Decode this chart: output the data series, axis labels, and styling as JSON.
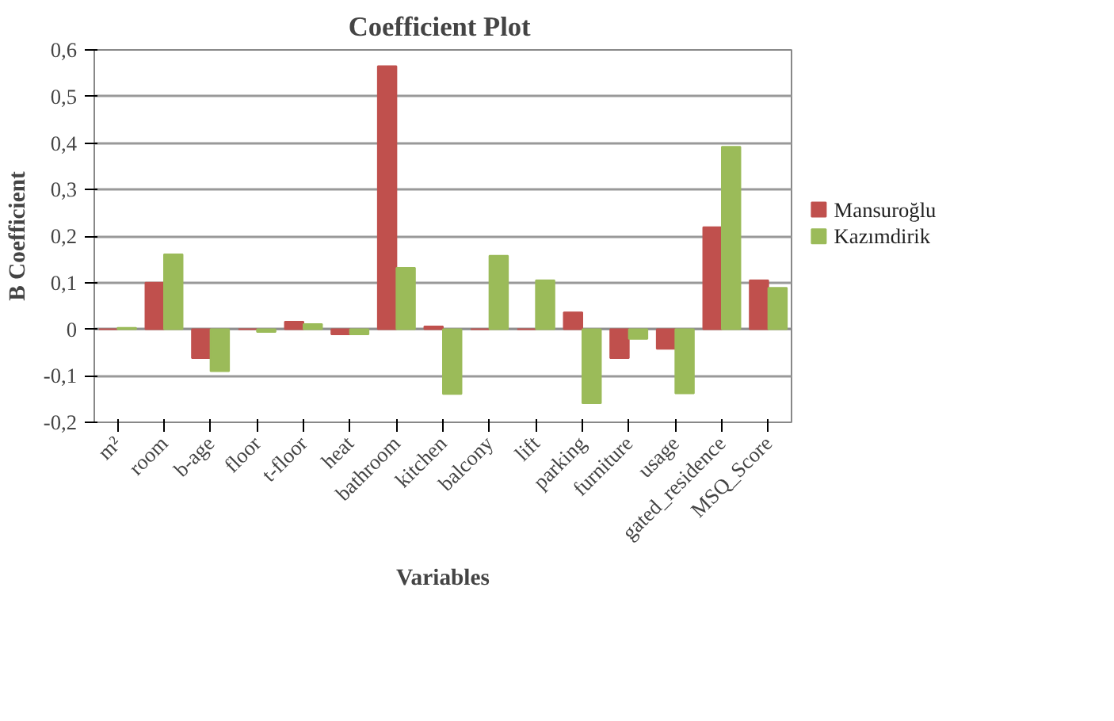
{
  "chart_data": {
    "type": "bar",
    "title": "Coefficient  Plot",
    "xlabel": "Variables",
    "ylabel": "B Coefficient",
    "categories": [
      "m²",
      "room",
      "b-age",
      "floor",
      "t-floor",
      "heat",
      "bathroom",
      "kitchen",
      "balcony",
      "lift",
      "parking",
      "furniture",
      "usage",
      "gated_residence",
      "MSQ_Score"
    ],
    "series": [
      {
        "name": "Mansuroğlu",
        "color": "#c0504d",
        "values": [
          0,
          0.1,
          -0.062,
          0,
          0.016,
          -0.011,
          0.565,
          0.006,
          0,
          0,
          0.036,
          -0.062,
          -0.042,
          0.219,
          0.105
        ]
      },
      {
        "name": "Kazımdirik",
        "color": "#9bbb59",
        "values": [
          0.003,
          0.161,
          -0.09,
          -0.006,
          0.011,
          -0.011,
          0.132,
          -0.139,
          0.158,
          0.105,
          -0.159,
          -0.021,
          -0.138,
          0.392,
          0.089
        ]
      }
    ],
    "ylim": [
      -0.2,
      0.6
    ],
    "yticks": [
      {
        "value": -0.2,
        "label": "-0,2"
      },
      {
        "value": -0.1,
        "label": "-0,1"
      },
      {
        "value": 0,
        "label": "0"
      },
      {
        "value": 0.1,
        "label": "0,1"
      },
      {
        "value": 0.2,
        "label": "0,2"
      },
      {
        "value": 0.3,
        "label": "0,3"
      },
      {
        "value": 0.4,
        "label": "0,4"
      },
      {
        "value": 0.5,
        "label": "0,5"
      },
      {
        "value": 0.6,
        "label": "0,6"
      }
    ],
    "grid": "y",
    "legend": "right"
  }
}
